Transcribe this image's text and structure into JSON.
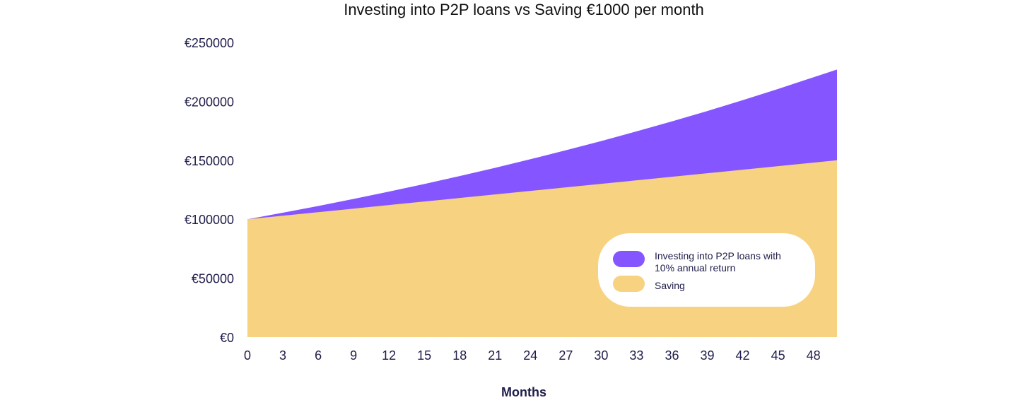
{
  "chart_data": {
    "type": "area",
    "title": "Investing into P2P loans vs Saving €1000 per month",
    "xlabel": "Months",
    "ylabel": "",
    "x": [
      0,
      3,
      6,
      9,
      12,
      15,
      18,
      21,
      24,
      27,
      30,
      33,
      36,
      39,
      42,
      45,
      48,
      50
    ],
    "x_ticks": [
      "0",
      "3",
      "6",
      "9",
      "12",
      "15",
      "18",
      "21",
      "24",
      "27",
      "30",
      "33",
      "36",
      "39",
      "42",
      "45",
      "48"
    ],
    "xlim": [
      0,
      50
    ],
    "y_ticks": [
      "€0",
      "€50000",
      "€100000",
      "€150000",
      "€200000",
      "€250000"
    ],
    "y_tick_values": [
      0,
      50000,
      100000,
      150000,
      200000,
      250000
    ],
    "ylim": [
      0,
      250000
    ],
    "grid": false,
    "legend_position": "lower-right",
    "series": [
      {
        "name": "Investing into P2P loans with 10% annual return",
        "name_lines": [
          "Investing into P2P loans with",
          "10% annual return"
        ],
        "color": "#8555ff",
        "values": [
          100000,
          105500,
          111200,
          117200,
          123400,
          129900,
          136600,
          143600,
          150900,
          158500,
          166300,
          174500,
          183000,
          191800,
          201000,
          210500,
          220400,
          227000
        ]
      },
      {
        "name": "Saving",
        "name_lines": [
          "Saving"
        ],
        "color": "#f7d280",
        "values": [
          100000,
          103000,
          106000,
          109000,
          112000,
          115000,
          118000,
          121000,
          124000,
          127000,
          130000,
          133000,
          136000,
          139000,
          142000,
          145000,
          148000,
          150000
        ]
      }
    ]
  }
}
